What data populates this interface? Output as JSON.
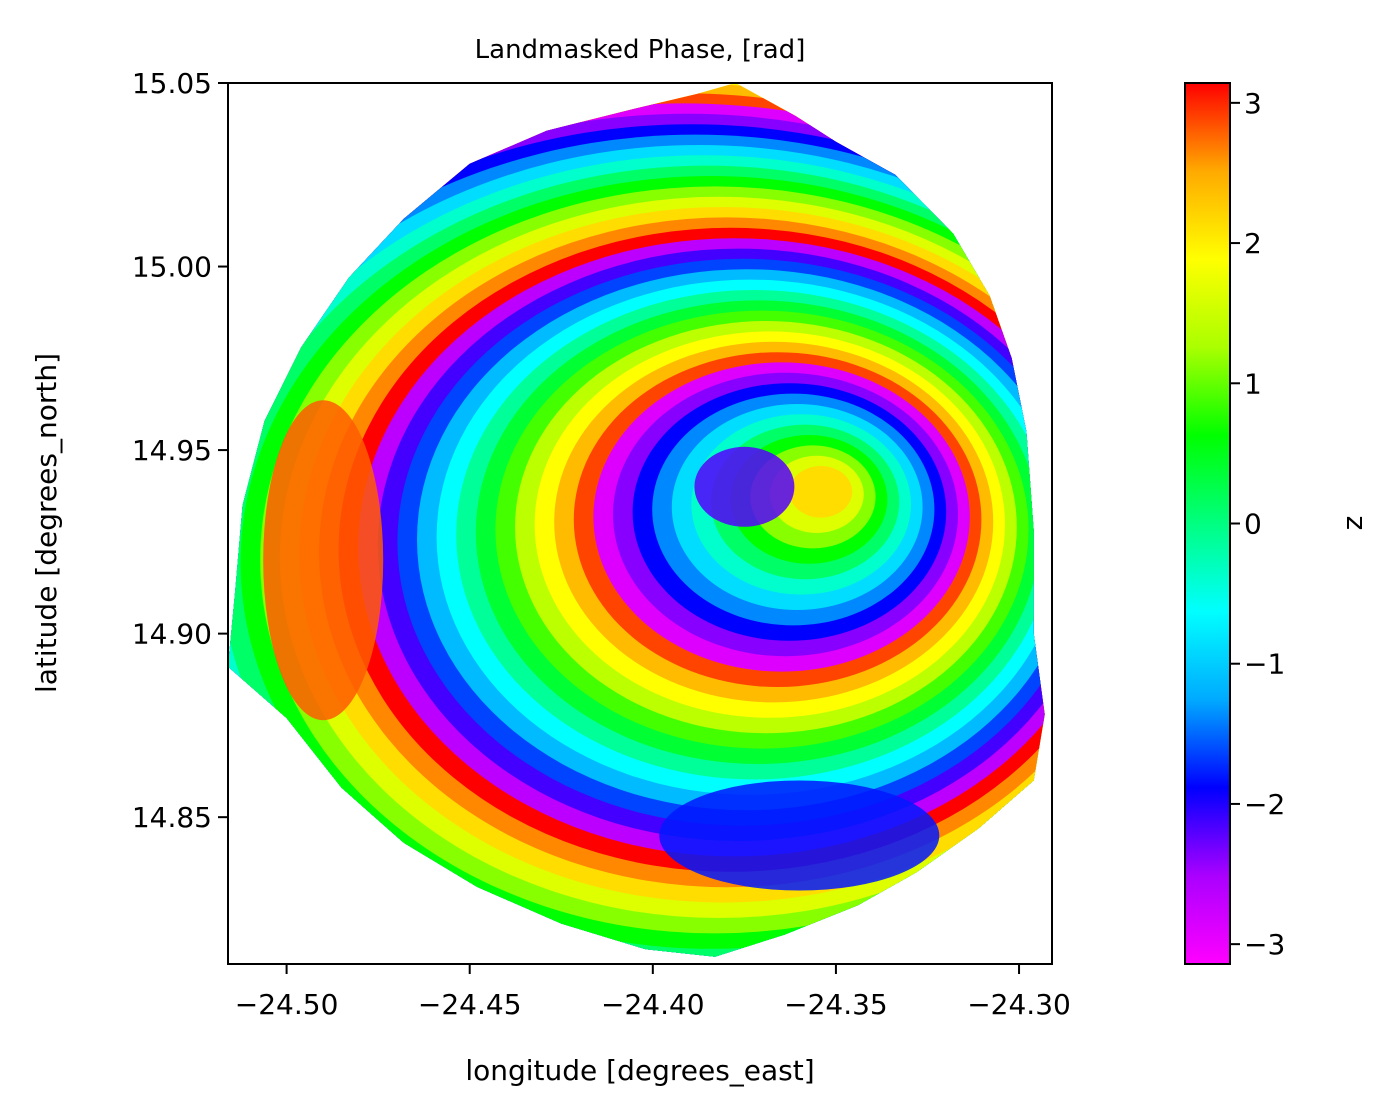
{
  "chart_data": {
    "type": "heatmap",
    "title": "Landmasked Phase, [rad]",
    "xlabel": "longitude [degrees_east]",
    "ylabel": "latitude [degrees_north]",
    "xlim": [
      -24.516,
      -24.291
    ],
    "ylim": [
      14.81,
      15.05
    ],
    "xticks": [
      -24.5,
      -24.45,
      -24.4,
      -24.35,
      -24.3
    ],
    "xtick_labels": [
      "−24.50",
      "−24.45",
      "−24.40",
      "−24.35",
      "−24.30"
    ],
    "yticks": [
      14.85,
      14.9,
      14.95,
      15.0,
      15.05
    ],
    "ytick_labels": [
      "14.85",
      "14.90",
      "14.95",
      "15.00",
      "15.05"
    ],
    "colorbar": {
      "label": "z",
      "range": [
        -3.1416,
        3.1416
      ],
      "ticks": [
        -3,
        -2,
        -1,
        0,
        1,
        2,
        3
      ],
      "tick_labels": [
        "−3",
        "−2",
        "−1",
        "0",
        "1",
        "2",
        "3"
      ],
      "colormap_stops": [
        "#ff00ff",
        "#aa00ff",
        "#0000ff",
        "#00aaff",
        "#00ffff",
        "#00ff80",
        "#00ff00",
        "#aaff00",
        "#ffff00",
        "#ffaa00",
        "#ff0000"
      ]
    },
    "island_outline": [
      [
        -24.3774,
        15.05
      ],
      [
        -24.361,
        15.041
      ],
      [
        -24.35,
        15.034
      ],
      [
        -24.3338,
        15.025
      ],
      [
        -24.318,
        15.009
      ],
      [
        -24.308,
        14.992
      ],
      [
        -24.302,
        14.975
      ],
      [
        -24.298,
        14.955
      ],
      [
        -24.296,
        14.928
      ],
      [
        -24.296,
        14.9
      ],
      [
        -24.293,
        14.878
      ],
      [
        -24.296,
        14.86
      ],
      [
        -24.311,
        14.847
      ],
      [
        -24.328,
        14.835
      ],
      [
        -24.344,
        14.826
      ],
      [
        -24.364,
        14.818
      ],
      [
        -24.383,
        14.812
      ],
      [
        -24.402,
        14.814
      ],
      [
        -24.425,
        14.821
      ],
      [
        -24.448,
        14.831
      ],
      [
        -24.468,
        14.843
      ],
      [
        -24.485,
        14.858
      ],
      [
        -24.5,
        14.877
      ],
      [
        -24.516,
        14.891
      ],
      [
        -24.514,
        14.912
      ],
      [
        -24.512,
        14.935
      ],
      [
        -24.506,
        14.958
      ],
      [
        -24.496,
        14.978
      ],
      [
        -24.483,
        14.997
      ],
      [
        -24.468,
        15.013
      ],
      [
        -24.45,
        15.028
      ],
      [
        -24.429,
        15.037
      ],
      [
        -24.405,
        15.043
      ],
      [
        -24.388,
        15.047
      ]
    ],
    "deformation_center": [
      -24.352,
      14.94
    ],
    "dominant_phase_regions": [
      {
        "region": "west flank",
        "value": 2.8
      },
      {
        "region": "southeast flank",
        "value": -1.8
      },
      {
        "region": "summit caldera",
        "value": -2.2
      }
    ]
  }
}
